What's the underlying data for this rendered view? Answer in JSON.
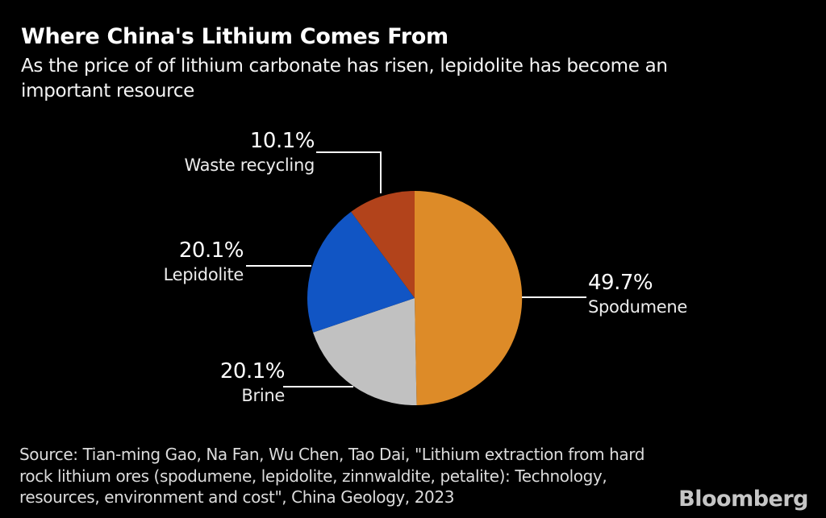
{
  "header": {
    "title": "Where China's Lithium Comes From",
    "subtitle_lines": [
      "As the price of of lithium carbonate has risen, lepidolite has become an",
      "important resource"
    ]
  },
  "chart_data": {
    "type": "pie",
    "title": "Where China's Lithium Comes From",
    "start_angle_deg": 0,
    "direction": "clockwise",
    "legend_position": "callout-labels",
    "slices": [
      {
        "label": "Spodumene",
        "value": 49.7,
        "pct_label": "49.7%",
        "color": "#DD8B28"
      },
      {
        "label": "Brine",
        "value": 20.1,
        "pct_label": "20.1%",
        "color": "#C1C1C1"
      },
      {
        "label": "Lepidolite",
        "value": 20.1,
        "pct_label": "20.1%",
        "color": "#1155C4"
      },
      {
        "label": "Waste recycling",
        "value": 10.1,
        "pct_label": "10.1%",
        "color": "#B2431B"
      }
    ]
  },
  "source": {
    "lines": [
      "Source: Tian-ming Gao, Na Fan, Wu Chen, Tao Dai, \"Lithium extraction from hard",
      "rock lithium ores (spodumene, lepidolite, zinnwaldite, petalite): Technology,",
      "resources, environment and cost\", China Geology, 2023"
    ]
  },
  "branding": {
    "logo": "Bloomberg"
  }
}
